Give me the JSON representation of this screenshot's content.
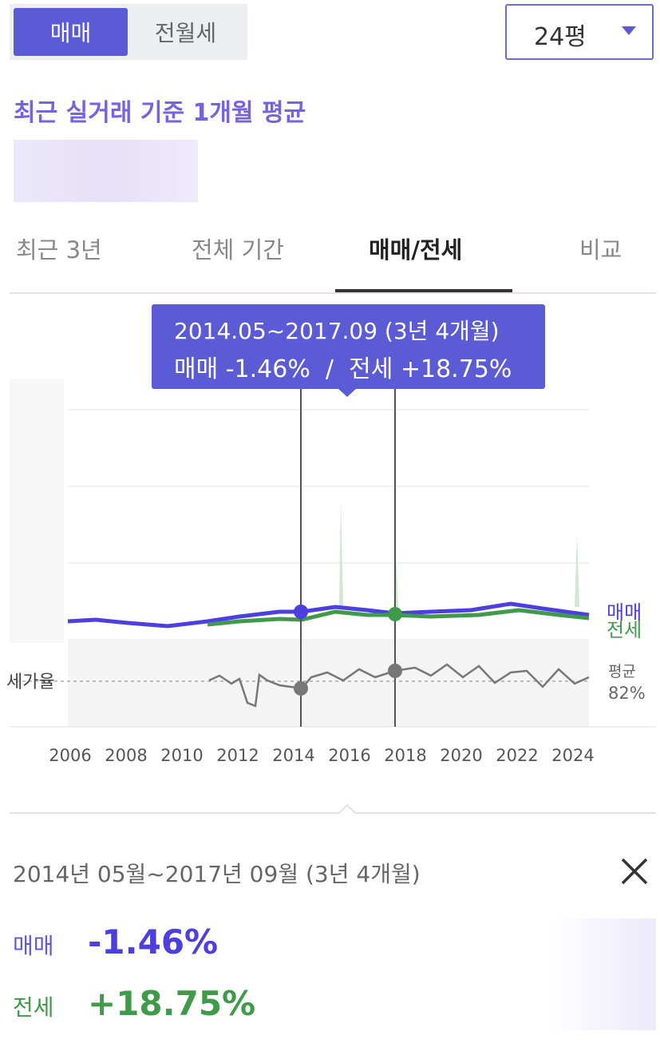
{
  "header": {
    "tabs": [
      "매매",
      "전월세"
    ],
    "size_select": "24평"
  },
  "subtitle": "최근 실거래 기준 1개월 평균",
  "period_tabs": [
    "최근 3년",
    "전체 기간",
    "매매/전세",
    "비교"
  ],
  "tooltip": {
    "period": "2014.05~2017.09 (3년 4개월)",
    "summary": "매매 -1.46%  /  전세 +18.75%"
  },
  "chart": {
    "series_labels": [
      "매매",
      "전세"
    ],
    "ratio_label": "세가율",
    "average_label": "평균",
    "average_value": "82%",
    "x_labels": [
      "2006",
      "2008",
      "2010",
      "2012",
      "2014",
      "2016",
      "2018",
      "2020",
      "2022",
      "2024"
    ]
  },
  "detail": {
    "period": "2014년 05월~2017년 09월 (3년 4개월)",
    "rows": [
      {
        "label": "매매",
        "change": "-1.46%"
      },
      {
        "label": "전세",
        "change": "+18.75%"
      }
    ]
  }
}
